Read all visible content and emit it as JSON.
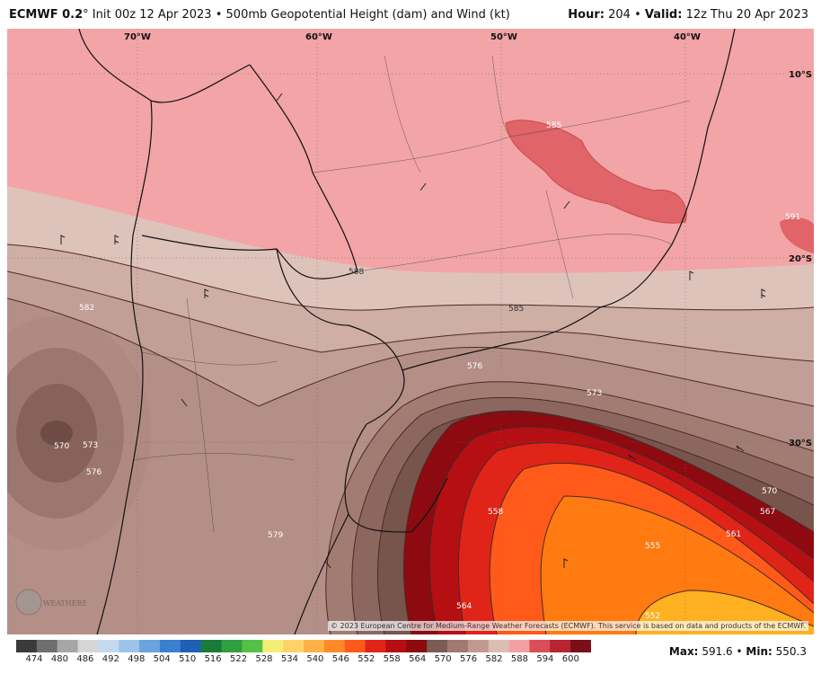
{
  "header": {
    "model": "ECMWF 0.2",
    "degree": "°",
    "init": "Init 00z 12 Apr 2023",
    "bullet": "•",
    "product": "500mb Geopotential Height (dam) and Wind (kt)",
    "hour_label": "Hour:",
    "hour": "204",
    "valid_label": "Valid:",
    "valid": "12z Thu 20 Apr 2023"
  },
  "map": {
    "lon_labels": [
      "70°W",
      "60°W",
      "50°W",
      "40°W"
    ],
    "lat_labels": [
      "10°S",
      "20°S",
      "30°S"
    ],
    "contour_labels": [
      "585",
      "591",
      "588",
      "582",
      "585",
      "576",
      "573",
      "570",
      "573",
      "576",
      "579",
      "558",
      "564",
      "570",
      "567",
      "561",
      "555",
      "552"
    ],
    "credit": "© 2023 European Centre for Medium-Range Weather Forecasts (ECMWF). This service is based on data and products of the ECMWF.",
    "logo": "WEATHERBELL"
  },
  "colorbar": {
    "labels": [
      "474",
      "480",
      "486",
      "492",
      "498",
      "504",
      "510",
      "516",
      "522",
      "528",
      "534",
      "540",
      "546",
      "552",
      "558",
      "564",
      "570",
      "576",
      "582",
      "588",
      "594",
      "600"
    ],
    "colors": [
      "#3a3a3a",
      "#6e6e6e",
      "#a6a6a6",
      "#d6d6d6",
      "#c3d9f0",
      "#9cc3ea",
      "#6aa3de",
      "#3b7fd0",
      "#1f5fb5",
      "#1a7a3a",
      "#2f9f3f",
      "#54c045",
      "#f2ee76",
      "#ffd36a",
      "#ffb347",
      "#ff8a2a",
      "#ff5a1a",
      "#e02418",
      "#b50f14",
      "#8c0a10",
      "#7a5c54",
      "#a07a70",
      "#c09a90",
      "#dcbcb4",
      "#f2a0a4",
      "#d94f58",
      "#b82432",
      "#7a0f1a"
    ]
  },
  "stats": {
    "max_label": "Max:",
    "max": "591.6",
    "sep": "•",
    "min_label": "Min:",
    "min": "550.3"
  }
}
